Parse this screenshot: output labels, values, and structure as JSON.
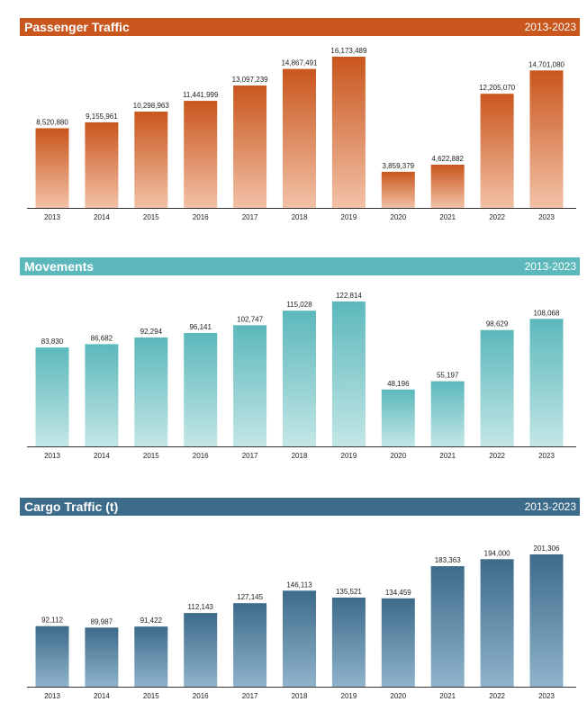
{
  "chart_data": [
    {
      "type": "bar",
      "title": "Passenger Traffic",
      "period": "2013-2023",
      "color": "#c9561d",
      "bar_top_color": "#c9561d",
      "bar_bottom_color": "#f2c1a6",
      "categories": [
        "2013",
        "2014",
        "2015",
        "2016",
        "2017",
        "2018",
        "2019",
        "2020",
        "2021",
        "2022",
        "2023"
      ],
      "values": [
        8520880,
        9155961,
        10298963,
        11441999,
        13097239,
        14867491,
        16173489,
        3859379,
        4622882,
        12205070,
        14701080
      ],
      "value_labels": [
        "8,520,880",
        "9,155,961",
        "10,298,963",
        "11,441,999",
        "13,097,239",
        "14,867,491",
        "16,173,489",
        "3,859,379",
        "4,622,882",
        "12,205,070",
        "14,701,080"
      ],
      "ylim": [
        0,
        16173489
      ],
      "xlabel": "",
      "ylabel": "",
      "grid": false,
      "legend": "none"
    },
    {
      "type": "bar",
      "title": "Movements",
      "period": "2013-2023",
      "color": "#5cb8bb",
      "bar_top_color": "#5cb8bb",
      "bar_bottom_color": "#c3e6e6",
      "categories": [
        "2013",
        "2014",
        "2015",
        "2016",
        "2017",
        "2018",
        "2019",
        "2020",
        "2021",
        "2022",
        "2023"
      ],
      "values": [
        83830,
        86682,
        92294,
        96141,
        102747,
        115028,
        122814,
        48196,
        55197,
        98629,
        108068
      ],
      "value_labels": [
        "83,830",
        "86,682",
        "92,294",
        "96,141",
        "102,747",
        "115,028",
        "122,814",
        "48,196",
        "55,197",
        "98,629",
        "108,068"
      ],
      "ylim": [
        0,
        122814
      ],
      "xlabel": "",
      "ylabel": "",
      "grid": false,
      "legend": "none"
    },
    {
      "type": "bar",
      "title": "Cargo Traffic (t)",
      "period": "2013-2023",
      "color": "#3d6b8a",
      "bar_top_color": "#3d6b8a",
      "bar_bottom_color": "#8fb3cb",
      "categories": [
        "2013",
        "2014",
        "2015",
        "2016",
        "2017",
        "2018",
        "2019",
        "2020",
        "2021",
        "2022",
        "2023"
      ],
      "values": [
        92112,
        89987,
        91422,
        112143,
        127145,
        146113,
        135521,
        134459,
        183363,
        194000,
        201306
      ],
      "value_labels": [
        "92,112",
        "89,987",
        "91,422",
        "112,143",
        "127,145",
        "146,113",
        "135,521",
        "134,459",
        "183,363",
        "194,000",
        "201,306"
      ],
      "ylim": [
        0,
        201306
      ],
      "xlabel": "",
      "ylabel": "",
      "grid": false,
      "legend": "none"
    }
  ]
}
